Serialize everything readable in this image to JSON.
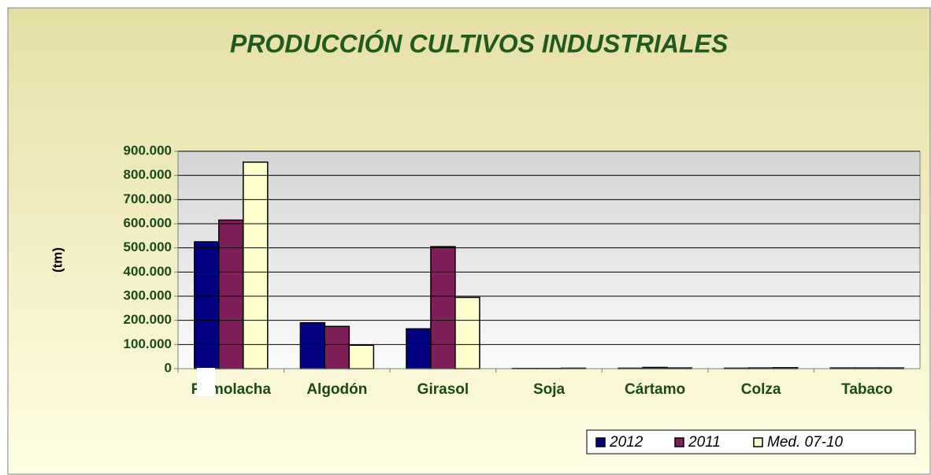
{
  "chart_data": {
    "type": "bar",
    "title": "PRODUCCIÓN CULTIVOS INDUSTRIALES",
    "y_label": "(tm)",
    "categories": [
      "Remolacha",
      "Algodón",
      "Girasol",
      "Soja",
      "Cártamo",
      "Colza",
      "Tabaco"
    ],
    "series": [
      {
        "name": "2012",
        "color": "#000080",
        "values": [
          525000,
          190000,
          165000,
          1000,
          2000,
          2000,
          3000
        ]
      },
      {
        "name": "2011",
        "color": "#7f1f5a",
        "values": [
          615000,
          175000,
          505000,
          1000,
          5000,
          3000,
          3000
        ]
      },
      {
        "name": "Med. 07-10",
        "color": "#ffffcc",
        "values": [
          855000,
          97000,
          295000,
          2000,
          3000,
          4000,
          3000
        ]
      }
    ],
    "ylim": [
      0,
      900000
    ],
    "yticks": [
      0,
      {
        "value": 100000,
        "label": "100.000"
      },
      {
        "value": 200000,
        "label": "200.000"
      },
      {
        "value": 300000,
        "label": "300.000"
      },
      {
        "value": 400000,
        "label": "400.000"
      },
      {
        "value": 500000,
        "label": "500.000"
      },
      {
        "value": 600000,
        "label": "600.000"
      },
      {
        "value": 700000,
        "label": "700.000"
      },
      {
        "value": 800000,
        "label": "800.000"
      },
      {
        "value": 900000,
        "label": "900.000"
      }
    ],
    "grid": true,
    "legend": "bottom-right"
  }
}
